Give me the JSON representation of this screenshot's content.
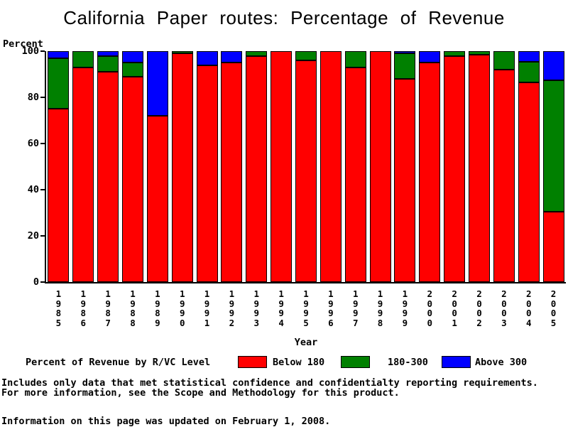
{
  "title": "California Paper routes: Percentage of Revenue",
  "y_axis": {
    "label": "Percent",
    "ticks": [
      100,
      80,
      60,
      40,
      20,
      0
    ]
  },
  "x_axis": {
    "label": "Year"
  },
  "legend": {
    "title": "Percent of Revenue by R/VC Level",
    "items": [
      {
        "label": "Below 180",
        "color": "#ff0000"
      },
      {
        "label": "180-300",
        "color": "#008000"
      },
      {
        "label": "Above 300",
        "color": "#0000ff"
      }
    ]
  },
  "footer": {
    "line1": "Includes only data that met statistical confidence and confidentialty reporting requirements.",
    "line2": "For more information, see the Scope and Methodology for this product.",
    "updated": "Information on this page was updated on February 1, 2008."
  },
  "chart_data": {
    "type": "bar",
    "stacked": true,
    "title": "California Paper routes: Percentage of Revenue",
    "xlabel": "Year",
    "ylabel": "Percent",
    "ylim": [
      0,
      100
    ],
    "grid": false,
    "legend_position": "bottom",
    "categories": [
      "1985",
      "1986",
      "1987",
      "1988",
      "1989",
      "1990",
      "1991",
      "1992",
      "1993",
      "1994",
      "1995",
      "1996",
      "1997",
      "1998",
      "1999",
      "2000",
      "2001",
      "2002",
      "2003",
      "2004",
      "2005"
    ],
    "series": [
      {
        "name": "Below 180",
        "color": "#ff0000",
        "values": [
          75,
          93,
          91,
          89,
          72,
          99,
          94,
          95,
          98,
          100,
          96,
          100,
          93,
          100,
          88,
          95,
          98,
          98.5,
          92,
          86.5,
          30.5
        ]
      },
      {
        "name": "180-300",
        "color": "#008000",
        "values": [
          22,
          7,
          7,
          6,
          0,
          1,
          0,
          0,
          2,
          0,
          4,
          0,
          7,
          0,
          11,
          0,
          2,
          1.5,
          8,
          9,
          57
        ]
      },
      {
        "name": "Above 300",
        "color": "#0000ff",
        "values": [
          3,
          0,
          2,
          5,
          28,
          0,
          6,
          5,
          0,
          0,
          0,
          0,
          0,
          0,
          1,
          5,
          0,
          0,
          0,
          4.5,
          12.5
        ]
      }
    ]
  }
}
